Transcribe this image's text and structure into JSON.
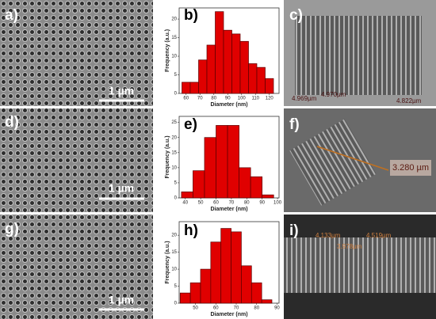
{
  "panels": [
    "a)",
    "b)",
    "c)",
    "d)",
    "e)",
    "f)",
    "g)",
    "h)",
    "i)"
  ],
  "scale_bars": [
    "1 µm",
    "1 µm",
    "1 µm"
  ],
  "measurements": {
    "c": [
      "4.969µm",
      "4.970µm",
      "4.822µm"
    ],
    "f": [
      "3.280 µm"
    ],
    "i": [
      "4.133µm",
      "4.519µm",
      "3.978µm"
    ]
  },
  "chart_data": [
    {
      "type": "histogram",
      "xlabel": "Diameter (nm)",
      "ylabel": "Frequency (a.u.)",
      "color": "#e00000",
      "bins": [
        57,
        63,
        69,
        75,
        81,
        87,
        93,
        99,
        105,
        111,
        117,
        123
      ],
      "values": [
        3,
        3,
        9,
        13,
        22,
        17,
        16,
        14,
        8,
        7,
        4
      ],
      "xlim": [
        55,
        127
      ],
      "xticks": [
        60,
        70,
        80,
        90,
        100,
        110,
        120
      ],
      "ylim": [
        0,
        23
      ],
      "yticks": [
        0,
        5,
        10,
        15,
        20
      ]
    },
    {
      "type": "histogram",
      "xlabel": "Diameter (nm)",
      "ylabel": "Frequency (a.u.)",
      "color": "#e00000",
      "bins": [
        37.5,
        45,
        52.5,
        60,
        67.5,
        75,
        82.5,
        90,
        97.5
      ],
      "values": [
        2,
        9,
        20,
        24,
        24,
        10,
        7,
        1
      ],
      "xlim": [
        36,
        101
      ],
      "xticks": [
        40,
        50,
        60,
        70,
        80,
        90,
        100
      ],
      "ylim": [
        0,
        27
      ],
      "yticks": [
        0,
        5,
        10,
        15,
        20,
        25
      ]
    },
    {
      "type": "histogram",
      "xlabel": "Diameter (nm)",
      "ylabel": "Frequency (a.u.)",
      "color": "#e00000",
      "bins": [
        42.5,
        47.5,
        52.5,
        57.5,
        62.5,
        67.5,
        72.5,
        77.5,
        82.5,
        87.5
      ],
      "values": [
        3,
        6,
        10,
        18,
        22,
        21,
        11,
        6,
        1
      ],
      "xlim": [
        42,
        91
      ],
      "xticks": [
        50,
        60,
        70,
        80,
        90
      ],
      "ylim": [
        0,
        24
      ],
      "yticks": [
        0,
        5,
        10,
        15,
        20
      ]
    }
  ]
}
